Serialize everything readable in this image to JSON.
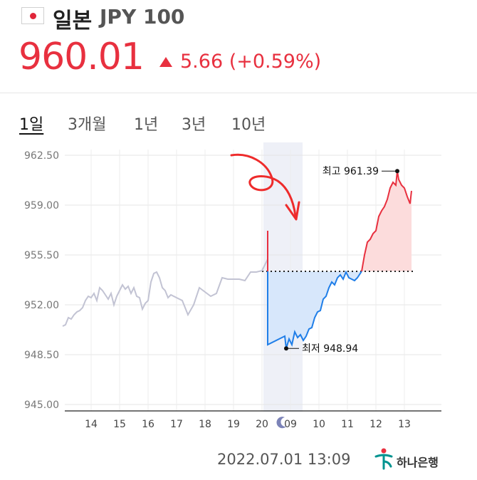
{
  "header": {
    "country": "일본",
    "code": "JPY 100",
    "price": "960.01",
    "change": "5.66 (+0.59%)",
    "colors": {
      "up": "#e8303f",
      "down": "#1f7ee8",
      "history": "#c2c3d3"
    }
  },
  "tabs": [
    {
      "label": "1일",
      "active": true
    },
    {
      "label": "3개월",
      "active": false
    },
    {
      "label": "1년",
      "active": false
    },
    {
      "label": "3년",
      "active": false
    },
    {
      "label": "10년",
      "active": false
    }
  ],
  "chart_data": {
    "type": "line",
    "y_ticks": [
      "962.50",
      "959.00",
      "955.50",
      "952.00",
      "948.50",
      "945.00"
    ],
    "ylim": [
      945.0,
      962.5
    ],
    "x_ticks": [
      "14",
      "15",
      "16",
      "17",
      "18",
      "19",
      "20",
      "09",
      "10",
      "11",
      "12",
      "13"
    ],
    "night_icon": "moon-icon",
    "previous_close": 954.35,
    "max_label": "최고 961.39",
    "min_label": "최저 948.94",
    "series": [
      {
        "segment": "history",
        "x": [
          13.0,
          13.1,
          13.2,
          13.3,
          13.4,
          13.5,
          13.6,
          13.7,
          13.8,
          13.9,
          14.0,
          14.1,
          14.2,
          14.3,
          14.4,
          14.5,
          14.6,
          14.7,
          14.8,
          14.9,
          15.0,
          15.1,
          15.2,
          15.3,
          15.4,
          15.5,
          15.6,
          15.7,
          15.8,
          15.9,
          16.0,
          16.1,
          16.2,
          16.3,
          16.4,
          16.5,
          16.6,
          16.7,
          16.8,
          16.9,
          17.0,
          17.2,
          17.4,
          17.6,
          17.8,
          18.0,
          18.2,
          18.4,
          18.6,
          18.8,
          19.0,
          19.2,
          19.4,
          19.6,
          19.8,
          20.0,
          20.2
        ],
        "y": [
          950.5,
          950.6,
          951.1,
          951.0,
          951.3,
          951.5,
          951.6,
          951.8,
          952.3,
          952.6,
          952.5,
          952.8,
          952.3,
          953.2,
          953.0,
          952.7,
          952.4,
          952.8,
          952.0,
          952.6,
          953.0,
          953.4,
          953.1,
          953.3,
          952.8,
          953.2,
          952.6,
          952.5,
          951.7,
          952.1,
          952.3,
          953.6,
          954.2,
          954.3,
          953.9,
          953.2,
          953.0,
          952.5,
          952.7,
          952.6,
          952.5,
          952.3,
          951.3,
          952.0,
          953.2,
          952.9,
          952.6,
          952.8,
          953.9,
          953.8,
          953.8,
          953.8,
          953.7,
          954.3,
          954.3,
          954.4,
          955.2
        ]
      },
      {
        "segment": "up-spike",
        "x": [
          20.2,
          20.2
        ],
        "y": [
          954.35,
          957.2
        ]
      },
      {
        "segment": "down",
        "x": [
          20.2,
          20.2,
          20.8,
          20.85,
          20.95,
          21.05,
          21.15,
          21.25,
          21.35,
          21.45,
          21.55,
          21.65,
          21.75,
          21.85,
          21.95,
          22.05,
          22.15,
          22.25,
          22.35,
          22.45,
          22.55,
          22.65,
          22.75,
          22.85,
          22.95,
          23.05,
          23.15,
          23.25,
          23.35,
          23.5
        ],
        "y": [
          954.35,
          949.2,
          949.8,
          948.94,
          949.6,
          949.2,
          950.1,
          949.7,
          949.9,
          949.5,
          949.8,
          950.3,
          950.4,
          951.1,
          951.5,
          951.6,
          952.4,
          952.6,
          953.2,
          953.6,
          953.4,
          953.9,
          954.1,
          953.8,
          954.3,
          953.9,
          953.8,
          953.7,
          953.9,
          954.35
        ]
      },
      {
        "segment": "up",
        "x": [
          23.5,
          23.6,
          23.7,
          23.8,
          23.9,
          24.0,
          24.1,
          24.2,
          24.3,
          24.4,
          24.5,
          24.6,
          24.7,
          24.75,
          24.8,
          24.9,
          25.0,
          25.1,
          25.2,
          25.25
        ],
        "y": [
          954.35,
          955.5,
          956.4,
          956.6,
          957.0,
          957.2,
          958.2,
          958.6,
          958.9,
          959.4,
          960.2,
          960.6,
          960.4,
          961.39,
          960.8,
          960.4,
          960.2,
          959.6,
          959.1,
          960.0
        ]
      }
    ]
  },
  "footer": {
    "timestamp": "2022.07.01 13:09",
    "bank": "하나은행"
  }
}
